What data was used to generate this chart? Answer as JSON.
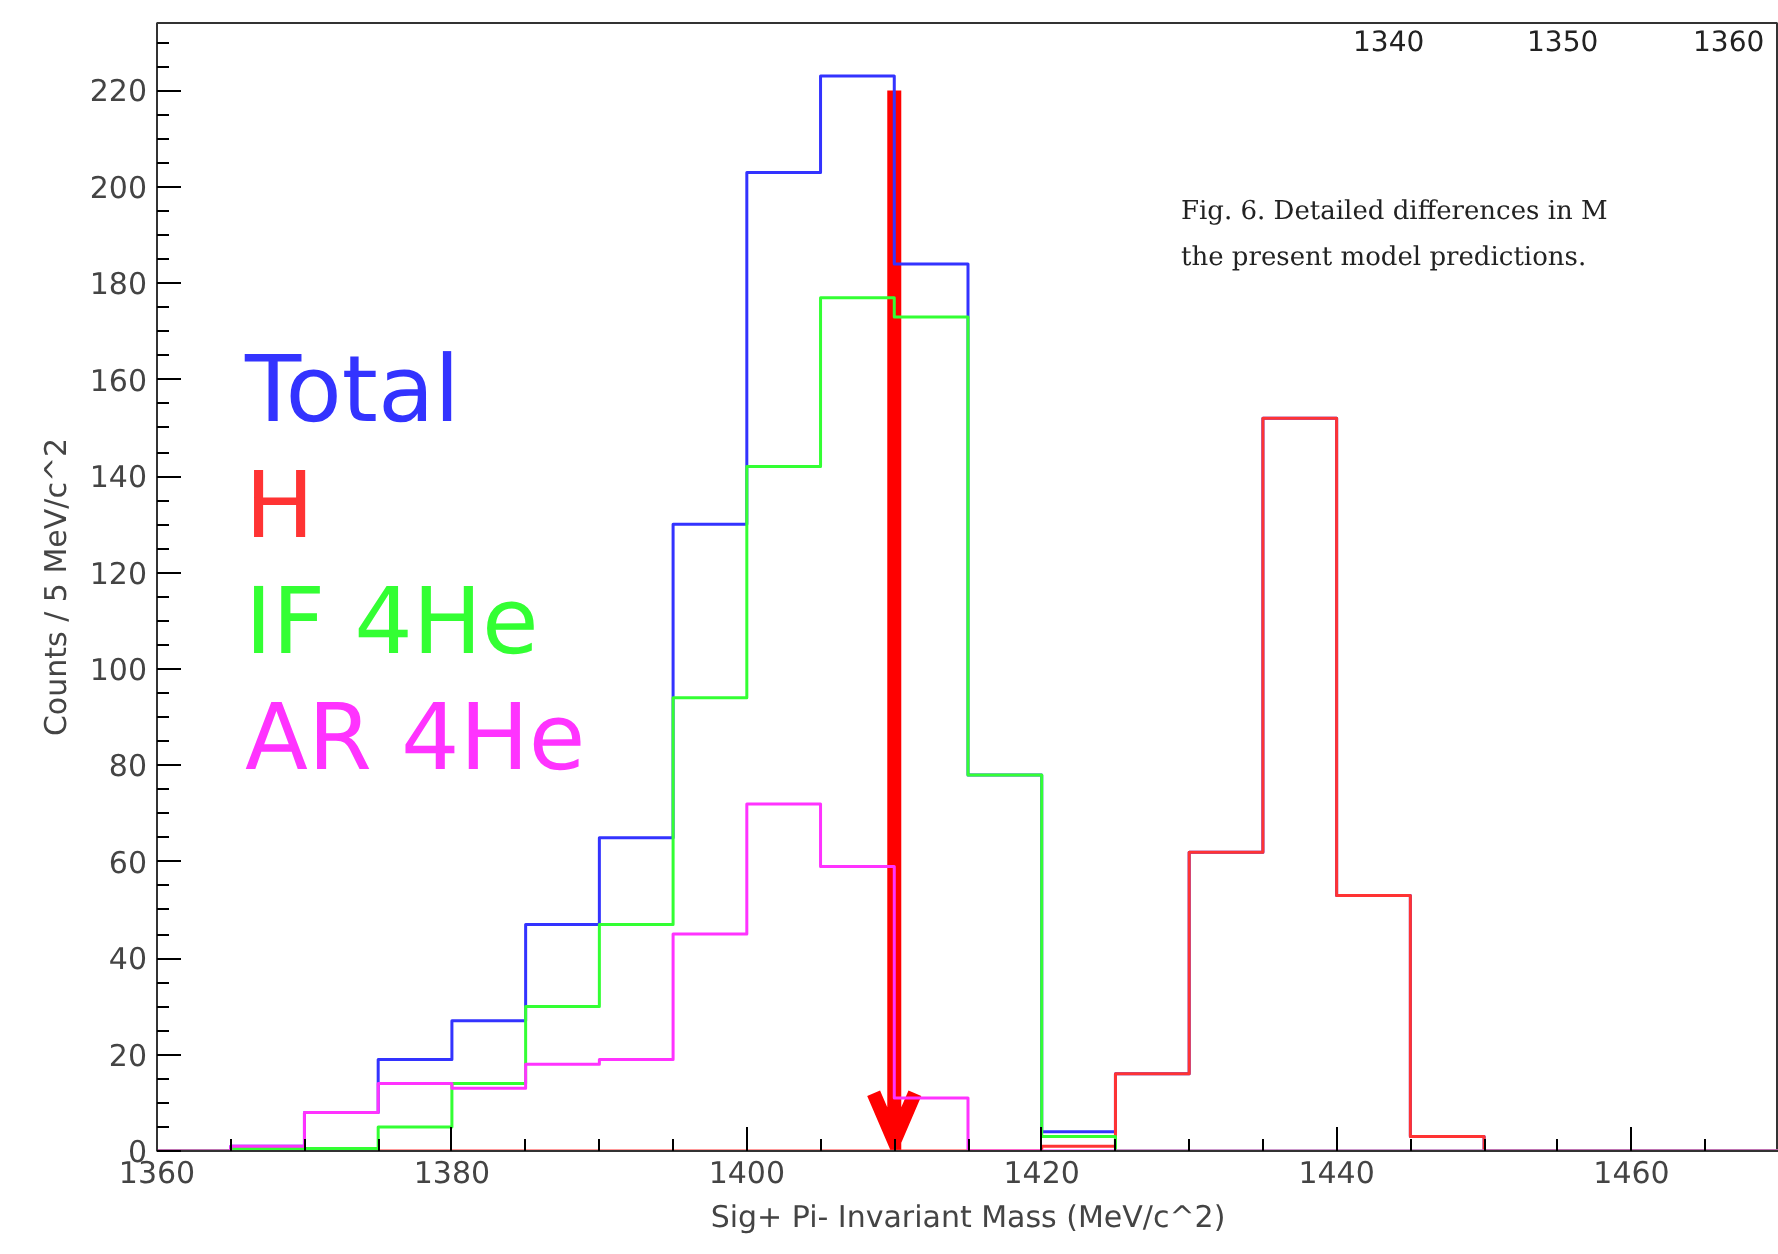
{
  "chart_data": {
    "type": "histogram",
    "xlabel": "Sig+ Pi- Invariant Mass (MeV/c^2)",
    "ylabel": "Counts / 5 MeV/c^2",
    "bins": [
      1360,
      1365,
      1370,
      1375,
      1380,
      1385,
      1390,
      1395,
      1400,
      1405,
      1410,
      1415,
      1420,
      1425,
      1430,
      1435,
      1440,
      1445,
      1450,
      1455,
      1460,
      1465,
      1470
    ],
    "series": [
      {
        "name": "Total",
        "color": "#3333ff",
        "values": [
          0,
          1,
          8,
          19,
          27,
          47,
          65,
          130,
          203,
          223,
          184,
          78,
          4,
          16,
          62,
          152,
          53,
          3,
          0,
          0,
          0,
          0
        ]
      },
      {
        "name": "H",
        "color": "#ff3333",
        "values": [
          0,
          0,
          0,
          0,
          0,
          0,
          0,
          0,
          0,
          0,
          0,
          0,
          1,
          16,
          62,
          152,
          53,
          3,
          0,
          0,
          0,
          0
        ]
      },
      {
        "name": "IF 4He",
        "color": "#33ff33",
        "values": [
          0,
          0.5,
          0.5,
          5,
          14,
          30,
          47,
          94,
          142,
          177,
          173,
          78,
          3,
          0,
          0,
          0,
          0,
          0,
          0,
          0,
          0,
          0
        ]
      },
      {
        "name": "AR 4He",
        "color": "#ff33ff",
        "values": [
          0,
          1,
          8,
          14,
          13,
          18,
          19,
          45,
          72,
          59,
          11,
          0,
          0,
          0,
          0,
          0,
          0,
          0,
          0,
          0,
          0,
          0
        ]
      }
    ],
    "xlim": [
      1360,
      1470
    ],
    "ylim": [
      0,
      234
    ],
    "xticks": [
      1360,
      1380,
      1400,
      1420,
      1440,
      1460
    ],
    "yticks": [
      0,
      20,
      40,
      60,
      80,
      100,
      120,
      140,
      160,
      180,
      200,
      220
    ],
    "ref_lines": [
      {
        "axis": "x",
        "value": 1410,
        "color": "#ff0000"
      }
    ],
    "legend": "left",
    "grid": false,
    "annotations": [
      "1340",
      "1350",
      "1360",
      "Fig. 6. Detailed differences in M",
      "the present model predictions."
    ]
  }
}
